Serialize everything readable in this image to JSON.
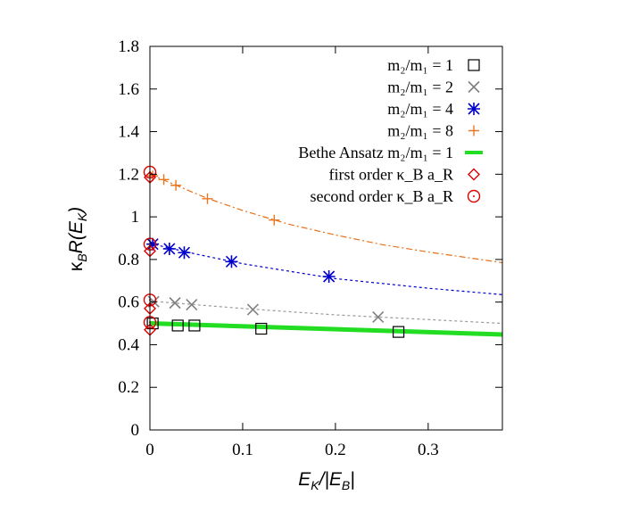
{
  "chart_data": {
    "type": "scatter",
    "xlabel": "E_K/|E_B|",
    "ylabel": "κ_B R(E_K)",
    "xlim": [
      0,
      0.38
    ],
    "ylim": [
      0,
      1.8
    ],
    "grid": false,
    "legend_position": "top-right",
    "x_ticks": [
      "0",
      "0.1",
      "0.2",
      "0.3"
    ],
    "x_tick_values": [
      0,
      0.1,
      0.2,
      0.3
    ],
    "y_ticks": [
      "0",
      "0.2",
      "0.4",
      "0.6",
      "0.8",
      "1",
      "1.2",
      "1.4",
      "1.6",
      "1.8"
    ],
    "y_tick_values": [
      0,
      0.2,
      0.4,
      0.6,
      0.8,
      1.0,
      1.2,
      1.4,
      1.6,
      1.8
    ],
    "series": [
      {
        "name": "m2/m1 = 1",
        "legend_label": "m₂/m₁ = 1",
        "marker": "square",
        "color": "#000000",
        "points": [
          [
            0.003,
            0.5
          ],
          [
            0.03,
            0.49
          ],
          [
            0.048,
            0.49
          ],
          [
            0.12,
            0.475
          ],
          [
            0.268,
            0.46
          ]
        ],
        "fit": [
          [
            0,
            0.497
          ],
          [
            0.38,
            0.445
          ]
        ],
        "fit_color": "#000000"
      },
      {
        "name": "m2/m1 = 2",
        "legend_label": "m₂/m₁ = 2",
        "marker": "x",
        "color": "#808080",
        "points": [
          [
            0.004,
            0.602
          ],
          [
            0.027,
            0.596
          ],
          [
            0.045,
            0.588
          ],
          [
            0.111,
            0.565
          ],
          [
            0.246,
            0.53
          ]
        ],
        "fit": [
          [
            0,
            0.605
          ],
          [
            0.1,
            0.57
          ],
          [
            0.2,
            0.54
          ],
          [
            0.3,
            0.518
          ],
          [
            0.38,
            0.5
          ]
        ],
        "fit_color": "#999999"
      },
      {
        "name": "m2/m1 = 4",
        "legend_label": "m₂/m₁ = 4",
        "marker": "star",
        "color": "#0000cc",
        "points": [
          [
            0.003,
            0.872
          ],
          [
            0.021,
            0.85
          ],
          [
            0.037,
            0.832
          ],
          [
            0.088,
            0.79
          ],
          [
            0.193,
            0.72
          ]
        ],
        "fit": [
          [
            0,
            0.875
          ],
          [
            0.05,
            0.825
          ],
          [
            0.1,
            0.78
          ],
          [
            0.2,
            0.71
          ],
          [
            0.3,
            0.665
          ],
          [
            0.38,
            0.635
          ]
        ],
        "fit_color": "#0000cc"
      },
      {
        "name": "m2/m1 = 8",
        "legend_label": "m₂/m₁ = 8",
        "marker": "plus",
        "color": "#e87722",
        "points": [
          [
            0.003,
            1.192
          ],
          [
            0.015,
            1.175
          ],
          [
            0.028,
            1.148
          ],
          [
            0.062,
            1.085
          ],
          [
            0.134,
            0.985
          ]
        ],
        "fit": [
          [
            0,
            1.2
          ],
          [
            0.03,
            1.145
          ],
          [
            0.06,
            1.09
          ],
          [
            0.1,
            1.03
          ],
          [
            0.15,
            0.965
          ],
          [
            0.2,
            0.915
          ],
          [
            0.25,
            0.87
          ],
          [
            0.3,
            0.835
          ],
          [
            0.38,
            0.785
          ]
        ],
        "fit_color": "#e8701a"
      },
      {
        "name": "Bethe Ansatz m2/m1 = 1",
        "legend_label": "Bethe Ansatz m₂/m₁ = 1",
        "marker": "line",
        "color": "#22dd22",
        "line": [
          [
            0,
            0.5
          ],
          [
            0.38,
            0.448
          ]
        ]
      },
      {
        "name": "first order κB aR",
        "legend_label": "first order κ_B a_R",
        "marker": "diamond",
        "color": "#dd0000",
        "points": [
          [
            0,
            0.47
          ],
          [
            0,
            0.57
          ],
          [
            0,
            0.84
          ],
          [
            0,
            1.185
          ]
        ]
      },
      {
        "name": "second order κB aR",
        "legend_label": "second order κ_B a_R",
        "marker": "circle",
        "color": "#dd0000",
        "points": [
          [
            0,
            0.505
          ],
          [
            0,
            0.61
          ],
          [
            0,
            0.872
          ],
          [
            0,
            1.21
          ]
        ]
      }
    ]
  }
}
